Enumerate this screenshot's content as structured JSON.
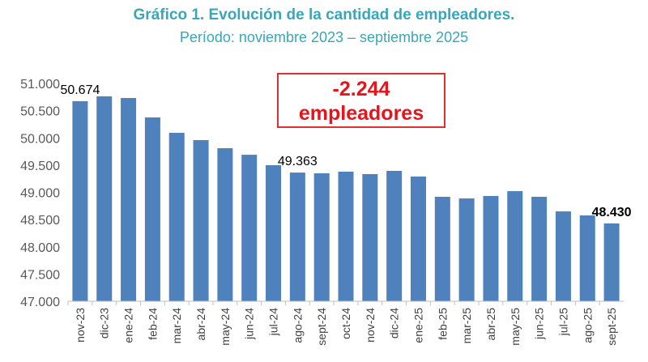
{
  "chart_data": {
    "type": "bar",
    "title": "Gráfico 1. Evolución de la cantidad de empleadores.",
    "subtitle": "Período: noviembre 2023 – septiembre 2025",
    "categories": [
      "nov-23",
      "dic-23",
      "ene-24",
      "feb-24",
      "mar-24",
      "abr-24",
      "may-24",
      "jun-24",
      "jul-24",
      "ago-24",
      "sept-24",
      "oct-24",
      "nov-24",
      "dic-24",
      "ene-25",
      "feb-25",
      "mar-25",
      "abr-25",
      "may-25",
      "jun-25",
      "jul-25",
      "ago-25",
      "sept-25"
    ],
    "values": [
      50674,
      50762,
      50732,
      50375,
      50093,
      49959,
      49810,
      49690,
      49498,
      49363,
      49350,
      49380,
      49335,
      49394,
      49290,
      48918,
      48888,
      48933,
      49022,
      48918,
      48650,
      48576,
      48430
    ],
    "ylim": [
      47000,
      51000
    ],
    "yticks": [
      "47.000",
      "47.500",
      "48.000",
      "48.500",
      "49.000",
      "49.500",
      "50.000",
      "50.500",
      "51.000"
    ],
    "data_labels": [
      {
        "index": 0,
        "text": "50.674"
      },
      {
        "index": 9,
        "text": "49.363"
      },
      {
        "index": 22,
        "text": "48.430",
        "bold": true
      }
    ],
    "annotation": {
      "line1": "-2.244",
      "line2": "empleadores"
    },
    "bar_color": "#4f81bd",
    "xlabel": "",
    "ylabel": "",
    "grid": false
  }
}
